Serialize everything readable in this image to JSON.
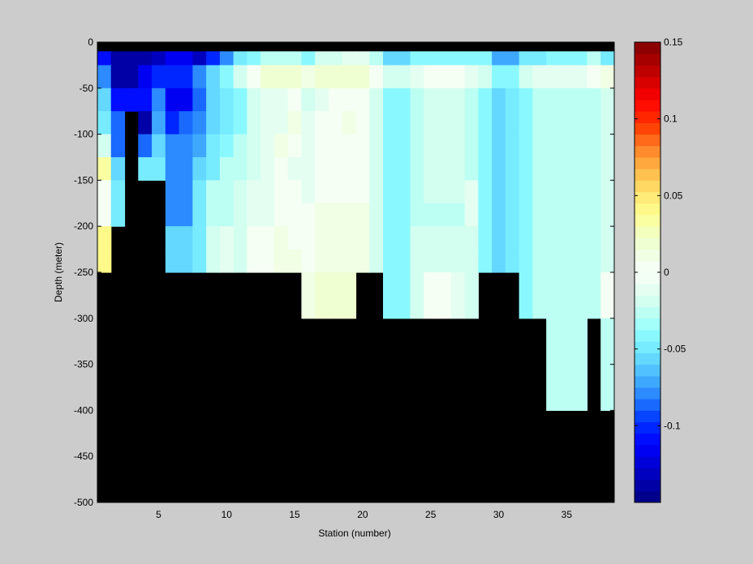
{
  "chart_data": {
    "type": "heatmap",
    "title": "",
    "xlabel": "Station (number)",
    "ylabel": "Depth (meter)",
    "xlim": [
      1,
      38
    ],
    "ylim": [
      -500,
      0
    ],
    "x_ticks": [
      5,
      10,
      15,
      20,
      25,
      30,
      35
    ],
    "y_ticks": [
      0,
      -50,
      -100,
      -150,
      -200,
      -250,
      -300,
      -350,
      -400,
      -450,
      -500
    ],
    "grid": false,
    "missing_color": "#000000",
    "colorbar": {
      "location": "right",
      "clim": [
        -0.15,
        0.15
      ],
      "ticks": [
        0.15,
        0.1,
        0.05,
        0,
        -0.05,
        -0.1
      ],
      "tick_labels": [
        "0.15",
        "0.1",
        "0.05",
        "0",
        "-0.05",
        "-0.1"
      ],
      "colormap": "jet-white-center",
      "levels": 40
    },
    "stations": [
      1,
      2,
      3,
      4,
      5,
      6,
      7,
      8,
      9,
      10,
      11,
      12,
      13,
      14,
      15,
      16,
      17,
      18,
      19,
      20,
      21,
      22,
      23,
      24,
      25,
      26,
      27,
      28,
      29,
      30,
      31,
      32,
      33,
      34,
      35,
      36,
      37,
      38
    ],
    "station_bottom_depth": [
      250,
      200,
      75,
      150,
      150,
      250,
      250,
      250,
      250,
      250,
      250,
      250,
      250,
      250,
      250,
      300,
      300,
      300,
      300,
      300,
      250,
      300,
      300,
      300,
      300,
      300,
      300,
      250,
      250,
      250,
      300,
      300,
      300,
      400,
      400,
      300,
      400,
      400
    ],
    "depth_bins": [
      {
        "top": 0,
        "bottom": -10
      },
      {
        "top": -10,
        "bottom": -25
      },
      {
        "top": -25,
        "bottom": -50
      },
      {
        "top": -50,
        "bottom": -75
      },
      {
        "top": -75,
        "bottom": -100
      },
      {
        "top": -100,
        "bottom": -125
      },
      {
        "top": -125,
        "bottom": -150
      },
      {
        "top": -150,
        "bottom": -175
      },
      {
        "top": -175,
        "bottom": -200
      },
      {
        "top": -200,
        "bottom": -225
      },
      {
        "top": -225,
        "bottom": -250
      },
      {
        "top": -250,
        "bottom": -275
      },
      {
        "top": -275,
        "bottom": -300
      },
      {
        "top": -300,
        "bottom": -400
      }
    ],
    "values": [
      [
        null,
        null,
        null,
        null,
        null,
        null,
        null,
        null,
        null,
        null,
        null,
        null,
        null,
        null,
        null,
        null,
        null,
        null,
        null,
        null,
        null,
        null,
        null,
        null,
        null,
        null,
        null,
        null,
        null,
        null,
        null,
        null,
        null,
        null,
        null,
        null,
        null,
        null
      ],
      [
        -0.11,
        -0.14,
        -0.14,
        -0.14,
        -0.13,
        -0.12,
        -0.12,
        -0.13,
        -0.1,
        -0.08,
        -0.05,
        -0.04,
        -0.03,
        -0.03,
        -0.03,
        -0.04,
        -0.02,
        -0.02,
        -0.01,
        -0.01,
        -0.03,
        -0.06,
        -0.06,
        -0.04,
        -0.04,
        -0.04,
        -0.04,
        -0.04,
        -0.04,
        -0.07,
        -0.07,
        -0.05,
        -0.05,
        -0.04,
        -0.04,
        -0.04,
        -0.03,
        -0.05
      ],
      [
        -0.08,
        -0.14,
        -0.14,
        -0.12,
        -0.1,
        -0.1,
        -0.1,
        -0.08,
        -0.06,
        -0.04,
        -0.02,
        0.0,
        0.02,
        0.02,
        0.02,
        0.01,
        0.02,
        0.02,
        0.02,
        0.02,
        0.0,
        -0.02,
        -0.02,
        -0.01,
        0.0,
        0.0,
        0.0,
        -0.01,
        -0.02,
        -0.04,
        -0.04,
        -0.02,
        -0.01,
        -0.01,
        -0.01,
        -0.01,
        0.0,
        0.01
      ],
      [
        -0.06,
        -0.11,
        -0.11,
        -0.11,
        -0.08,
        -0.12,
        -0.12,
        -0.09,
        -0.06,
        -0.05,
        -0.04,
        -0.02,
        -0.01,
        -0.01,
        0.0,
        -0.02,
        -0.01,
        0.0,
        0.0,
        0.0,
        -0.02,
        -0.04,
        -0.04,
        -0.03,
        -0.02,
        -0.02,
        -0.02,
        -0.03,
        -0.04,
        -0.06,
        -0.05,
        -0.04,
        -0.03,
        -0.03,
        -0.03,
        -0.03,
        -0.03,
        -0.02
      ],
      [
        -0.05,
        -0.09,
        null,
        -0.14,
        -0.07,
        -0.1,
        -0.09,
        -0.08,
        -0.06,
        -0.05,
        -0.04,
        -0.02,
        -0.01,
        -0.01,
        0.01,
        -0.01,
        0.0,
        0.0,
        0.01,
        0.0,
        -0.02,
        -0.04,
        -0.04,
        -0.03,
        -0.02,
        -0.02,
        -0.02,
        -0.03,
        -0.04,
        -0.06,
        -0.05,
        -0.04,
        -0.03,
        -0.03,
        -0.03,
        -0.03,
        -0.03,
        -0.02
      ],
      [
        -0.02,
        -0.09,
        null,
        -0.09,
        -0.06,
        -0.08,
        -0.08,
        -0.07,
        -0.05,
        -0.04,
        -0.03,
        -0.02,
        -0.01,
        0.01,
        0.0,
        -0.01,
        0.0,
        0.0,
        0.0,
        0.0,
        -0.02,
        -0.04,
        -0.04,
        -0.03,
        -0.02,
        -0.02,
        -0.02,
        -0.03,
        -0.04,
        -0.06,
        -0.05,
        -0.04,
        -0.03,
        -0.03,
        -0.03,
        -0.03,
        -0.03,
        -0.02
      ],
      [
        0.03,
        -0.06,
        null,
        -0.05,
        -0.05,
        -0.08,
        -0.08,
        -0.06,
        -0.05,
        -0.03,
        -0.03,
        -0.02,
        -0.01,
        0.0,
        -0.01,
        -0.01,
        0.0,
        0.0,
        0.0,
        0.0,
        -0.02,
        -0.04,
        -0.04,
        -0.03,
        -0.02,
        -0.02,
        -0.02,
        -0.03,
        -0.04,
        -0.06,
        -0.05,
        -0.04,
        -0.03,
        -0.03,
        -0.03,
        -0.03,
        -0.03,
        -0.02
      ],
      [
        0.0,
        -0.05,
        null,
        null,
        null,
        -0.08,
        -0.08,
        -0.05,
        -0.03,
        -0.03,
        -0.02,
        -0.01,
        -0.01,
        0.0,
        0.0,
        -0.01,
        0.0,
        0.0,
        0.0,
        0.0,
        -0.02,
        -0.04,
        -0.04,
        -0.03,
        -0.02,
        -0.02,
        -0.02,
        -0.01,
        -0.04,
        -0.06,
        -0.05,
        -0.04,
        -0.03,
        -0.03,
        -0.03,
        -0.03,
        -0.03,
        -0.02
      ],
      [
        0.0,
        -0.05,
        null,
        null,
        null,
        -0.08,
        -0.08,
        -0.05,
        -0.03,
        -0.03,
        -0.02,
        -0.01,
        -0.01,
        0.0,
        0.0,
        0.0,
        0.01,
        0.01,
        0.01,
        0.01,
        -0.02,
        -0.04,
        -0.04,
        -0.03,
        -0.03,
        -0.03,
        -0.03,
        -0.01,
        -0.04,
        -0.06,
        -0.05,
        -0.04,
        -0.03,
        -0.03,
        -0.03,
        -0.03,
        -0.03,
        -0.02
      ],
      [
        0.04,
        null,
        null,
        null,
        null,
        -0.06,
        -0.06,
        -0.05,
        -0.02,
        -0.01,
        -0.02,
        0.0,
        0.0,
        0.01,
        0.0,
        0.0,
        0.01,
        0.01,
        0.01,
        0.01,
        -0.02,
        -0.04,
        -0.04,
        -0.02,
        -0.02,
        -0.02,
        -0.02,
        -0.02,
        -0.04,
        -0.06,
        -0.05,
        -0.04,
        -0.03,
        -0.03,
        -0.03,
        -0.03,
        -0.03,
        -0.02
      ],
      [
        0.04,
        null,
        null,
        null,
        null,
        -0.06,
        -0.06,
        -0.05,
        -0.02,
        -0.01,
        -0.02,
        0.0,
        0.0,
        0.01,
        0.01,
        0.0,
        0.01,
        0.01,
        0.01,
        0.01,
        -0.02,
        -0.04,
        -0.04,
        -0.02,
        -0.02,
        -0.02,
        -0.02,
        -0.02,
        -0.04,
        -0.06,
        -0.05,
        -0.04,
        -0.03,
        -0.03,
        -0.03,
        -0.03,
        -0.03,
        -0.02
      ],
      [
        null,
        null,
        null,
        null,
        null,
        null,
        null,
        null,
        null,
        null,
        null,
        null,
        null,
        null,
        null,
        0.01,
        0.02,
        0.02,
        0.02,
        null,
        null,
        -0.04,
        -0.04,
        -0.02,
        0.0,
        0.0,
        -0.01,
        -0.02,
        null,
        null,
        null,
        -0.04,
        -0.03,
        -0.03,
        -0.03,
        -0.03,
        -0.03,
        0.0
      ],
      [
        null,
        null,
        null,
        null,
        null,
        null,
        null,
        null,
        null,
        null,
        null,
        null,
        null,
        null,
        null,
        0.01,
        0.02,
        0.02,
        0.02,
        null,
        null,
        -0.04,
        -0.04,
        -0.02,
        0.0,
        0.0,
        -0.01,
        -0.02,
        null,
        null,
        null,
        -0.04,
        -0.03,
        -0.03,
        -0.03,
        -0.03,
        -0.03,
        0.0
      ],
      [
        null,
        null,
        null,
        null,
        null,
        null,
        null,
        null,
        null,
        null,
        null,
        null,
        null,
        null,
        null,
        null,
        null,
        null,
        null,
        null,
        null,
        null,
        null,
        null,
        null,
        null,
        null,
        null,
        null,
        null,
        null,
        null,
        null,
        -0.03,
        -0.03,
        -0.03,
        null,
        -0.03
      ]
    ]
  }
}
